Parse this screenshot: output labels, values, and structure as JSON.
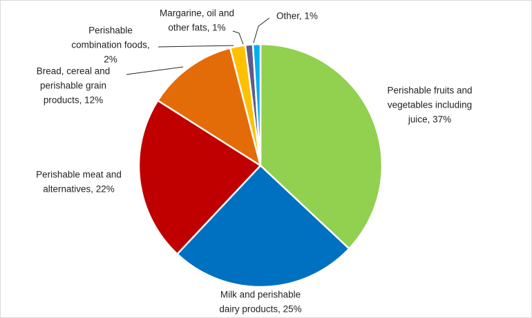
{
  "chart_data": {
    "type": "pie",
    "values": [
      37,
      25,
      22,
      12,
      2,
      1,
      1
    ],
    "value_labels": [
      [
        "Perishable fruits and",
        "vegetables including",
        "juice, 37%"
      ],
      [
        "Milk and perishable",
        "dairy products, 25%"
      ],
      [
        "Perishable meat and",
        "alternatives, 22%"
      ],
      [
        "Bread, cereal and",
        "perishable grain",
        "products, 12%"
      ],
      [
        "Perishable",
        "combination foods,",
        "2%"
      ],
      [
        "Margarine, oil and",
        "other fats, 1%"
      ],
      [
        "Other, 1%"
      ]
    ],
    "colors": [
      "#92d050",
      "#0070c0",
      "#c00000",
      "#e36c09",
      "#ffc000",
      "#5f5a8a",
      "#00b0f0"
    ]
  }
}
